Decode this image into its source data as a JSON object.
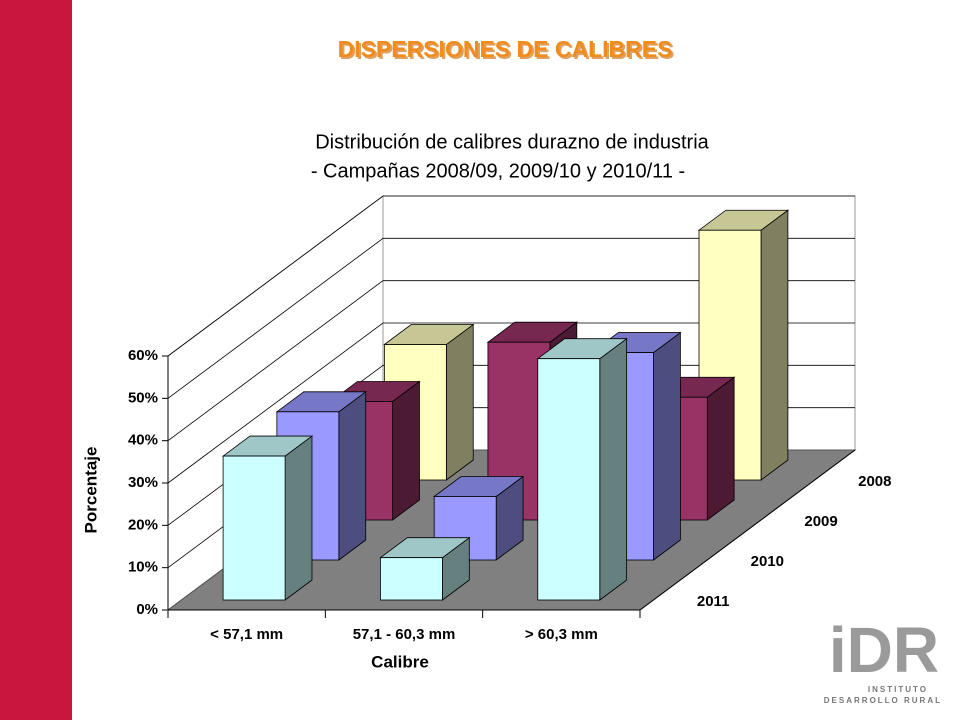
{
  "slide_title": "DISPERSIONES DE CALIBRES",
  "logo": {
    "letters": "iDR",
    "line1": "INSTITUTO",
    "line2": "DESARROLLO RURAL"
  },
  "chart_data": {
    "type": "bar3d",
    "title": [
      "Distribución de calibres durazno de industria",
      "- Campañas 2008/09, 2009/10 y 2010/11 -"
    ],
    "x_label": "Calibre",
    "y_label": "Porcentaje",
    "categories": [
      "<  57,1 mm",
      "57,1 - 60,3 mm",
      "> 60,3 mm"
    ],
    "series": [
      {
        "name": "2008",
        "color": "#ffffc0",
        "values": [
          32,
          9,
          59
        ]
      },
      {
        "name": "2009",
        "color": "#993366",
        "values": [
          28,
          42,
          29
        ]
      },
      {
        "name": "2010",
        "color": "#9999ff",
        "values": [
          35,
          15,
          49
        ]
      },
      {
        "name": "2011",
        "color": "#ccffff",
        "values": [
          34,
          10,
          57
        ]
      }
    ],
    "ylim": [
      0,
      60
    ],
    "yticks": [
      {
        "value": 0,
        "label": "0%"
      },
      {
        "value": 10,
        "label": "10%"
      },
      {
        "value": 20,
        "label": "20%"
      },
      {
        "value": 30,
        "label": "30%"
      },
      {
        "value": 40,
        "label": "40%"
      },
      {
        "value": 50,
        "label": "50%"
      },
      {
        "value": 60,
        "label": "60%"
      }
    ],
    "grid": true,
    "floor_color": "#808080"
  }
}
